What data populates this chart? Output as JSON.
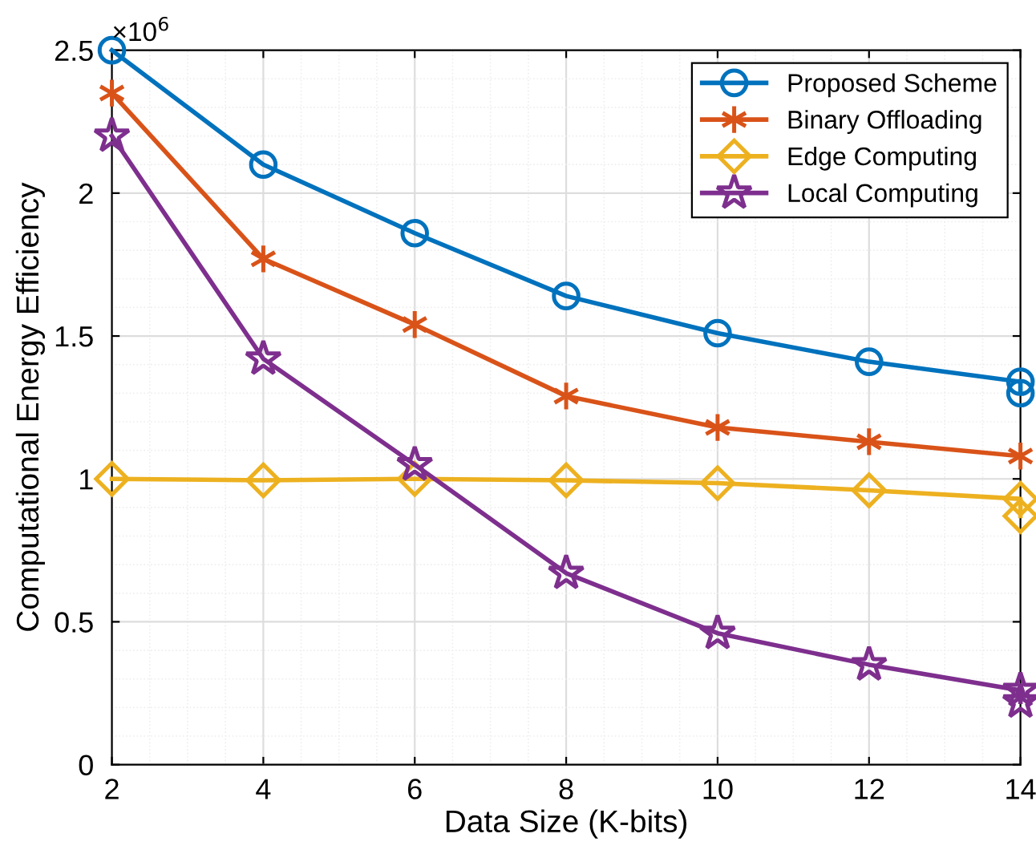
{
  "chart_data": {
    "type": "line",
    "xlabel": "Data Size (K-bits)",
    "ylabel": "Computational Energy Efficiency",
    "annotations": [
      "×10$^{6}$"
    ],
    "series": [
      {
        "name": "Proposed Scheme",
        "color": "#0072bd",
        "marker": "circle",
        "x": [
          2,
          4,
          6,
          8,
          10,
          12,
          14,
          14
        ],
        "values": [
          2.5,
          2.1,
          1.86,
          1.64,
          1.51,
          1.41,
          1.34,
          1.3
        ]
      },
      {
        "name": "Binary Offloading",
        "color": "#d95319",
        "marker": "cross",
        "x": [
          2,
          4,
          6,
          8,
          10,
          12,
          14
        ],
        "values": [
          2.35,
          1.77,
          1.54,
          1.29,
          1.18,
          1.13,
          1.08
        ]
      },
      {
        "name": "Edge Computing",
        "color": "#edb120",
        "marker": "diamond",
        "x": [
          2,
          4,
          6,
          8,
          10,
          12,
          14,
          14
        ],
        "values": [
          1.0,
          0.995,
          1.0,
          0.995,
          0.985,
          0.96,
          0.93,
          0.87
        ]
      },
      {
        "name": "Local Computing",
        "color": "#7e2f8e",
        "marker": "star",
        "x": [
          2,
          4,
          6,
          8,
          10,
          12,
          14,
          14
        ],
        "values": [
          2.2,
          1.42,
          1.05,
          0.67,
          0.46,
          0.35,
          0.26,
          0.22
        ]
      }
    ],
    "xlim": [
      2,
      14
    ],
    "xticks": [
      2,
      4,
      6,
      8,
      10,
      12,
      14
    ],
    "ylim": [
      0,
      2.5
    ],
    "yticks": [
      0,
      0.5,
      1,
      1.5,
      2,
      2.5
    ],
    "grid": true,
    "legend": "top right",
    "line_style": "solid"
  }
}
